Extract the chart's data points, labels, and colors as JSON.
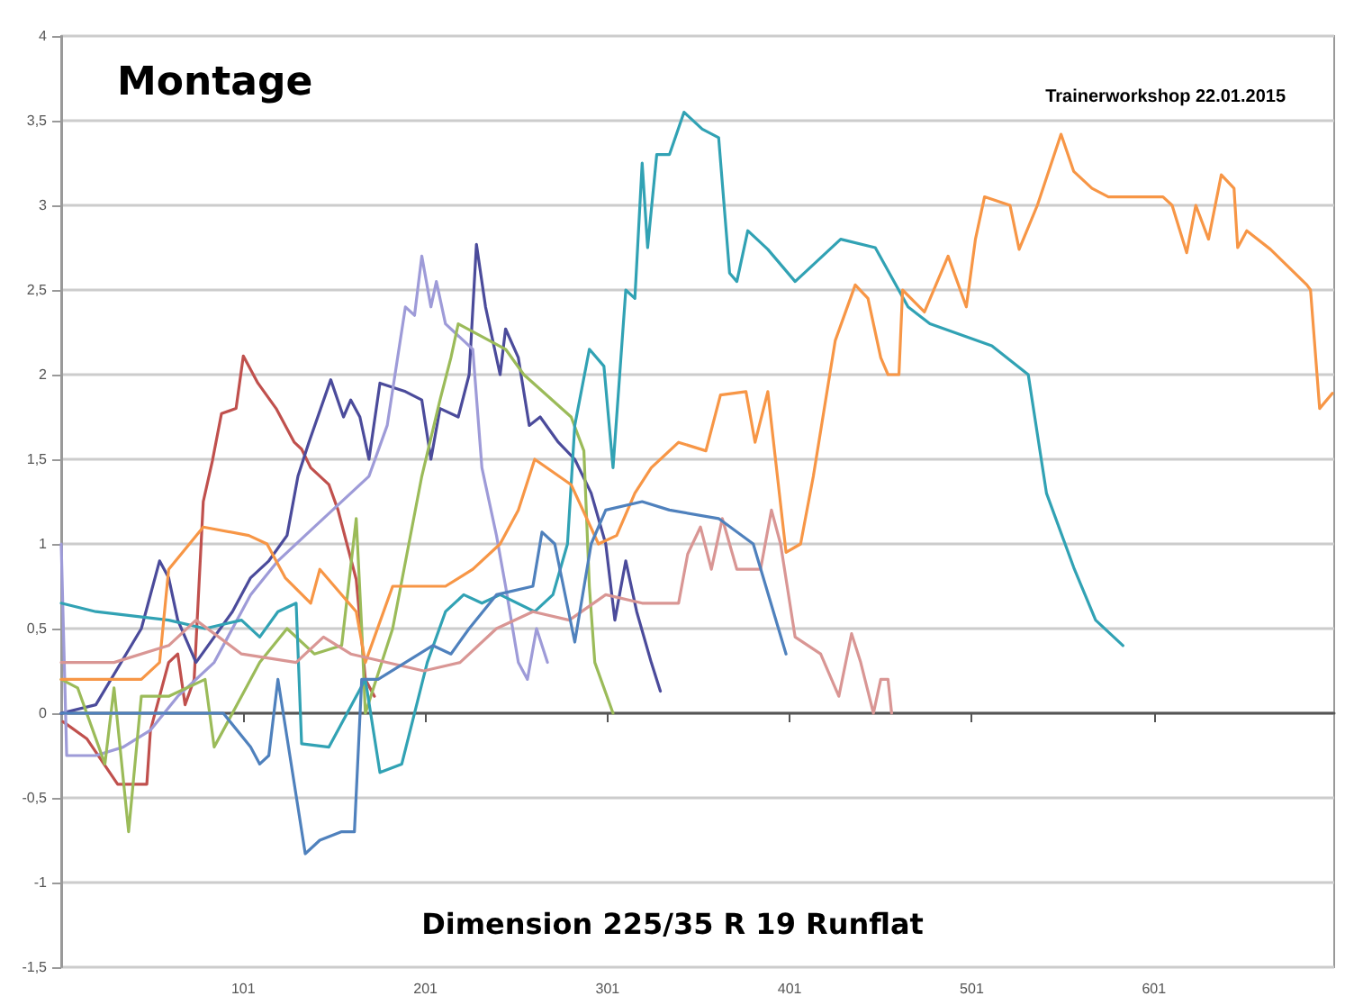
{
  "chart_data": {
    "type": "line",
    "title": "Montage",
    "subtitle": "Trainerworkshop 22.01.2015",
    "annotations": [
      "Dimension 225/35 R 19 Runflat"
    ],
    "xlim": [
      1,
      700
    ],
    "xticks": [
      101,
      201,
      301,
      401,
      501,
      601
    ],
    "ylim": [
      -1.5,
      4
    ],
    "yticks": [
      {
        "value": -1.5,
        "label": "-1,5"
      },
      -1,
      {
        "value": -0.5,
        "label": "-0,5"
      },
      0,
      {
        "value": 0.5,
        "label": "0,5"
      },
      1,
      {
        "value": 1.5,
        "label": "1,5"
      },
      2,
      {
        "value": 2.5,
        "label": "2,5"
      },
      3,
      {
        "value": 3.5,
        "label": "3,5"
      },
      4
    ],
    "grid": "y",
    "series": [
      {
        "color": "#c0504d",
        "x": [
          2,
          15,
          32,
          48,
          50,
          60,
          65,
          69,
          74,
          79,
          84,
          89,
          97,
          101,
          109,
          119,
          129,
          133,
          138,
          148,
          153,
          163,
          168,
          173
        ],
        "values": [
          -0.05,
          -0.15,
          -0.42,
          -0.42,
          -0.1,
          0.3,
          0.35,
          0.05,
          0.2,
          1.25,
          1.49,
          1.77,
          1.8,
          2.11,
          1.95,
          1.8,
          1.6,
          1.56,
          1.45,
          1.35,
          1.2,
          0.79,
          0.2,
          0.1
        ]
      },
      {
        "color": "#4b4b9b",
        "x": [
          1,
          20,
          45,
          55,
          60,
          65,
          75,
          95,
          105,
          115,
          125,
          131,
          137,
          149,
          156,
          160,
          165,
          170,
          176,
          190,
          199,
          204,
          209,
          219,
          225,
          229,
          234,
          242,
          245,
          252,
          258,
          264,
          274,
          283,
          292,
          300,
          305,
          311,
          317,
          325,
          330
        ],
        "values": [
          0,
          0.05,
          0.5,
          0.9,
          0.8,
          0.55,
          0.3,
          0.6,
          0.8,
          0.9,
          1.05,
          1.4,
          1.6,
          1.97,
          1.75,
          1.85,
          1.75,
          1.5,
          1.95,
          1.9,
          1.85,
          1.5,
          1.8,
          1.75,
          2,
          2.77,
          2.4,
          2,
          2.27,
          2.1,
          1.7,
          1.75,
          1.6,
          1.5,
          1.3,
          1,
          0.55,
          0.9,
          0.6,
          0.3,
          0.13
        ]
      },
      {
        "color": "#9e9bd8",
        "x": [
          1,
          4,
          20,
          35,
          50,
          65,
          85,
          95,
          105,
          120,
          140,
          160,
          170,
          180,
          190,
          195,
          199,
          204,
          207,
          212,
          217,
          222,
          227,
          232,
          240,
          245,
          252,
          257,
          262,
          268
        ],
        "values": [
          1,
          -0.25,
          -0.25,
          -0.2,
          -0.1,
          0.1,
          0.3,
          0.5,
          0.7,
          0.9,
          1.1,
          1.3,
          1.4,
          1.7,
          2.4,
          2.35,
          2.7,
          2.4,
          2.55,
          2.3,
          2.25,
          2.2,
          2.15,
          1.45,
          1.05,
          0.75,
          0.3,
          0.2,
          0.5,
          0.3
        ]
      },
      {
        "color": "#9bbb59",
        "x": [
          1,
          10,
          25,
          30,
          38,
          45,
          60,
          80,
          85,
          95,
          110,
          125,
          140,
          155,
          163,
          166,
          168,
          183,
          199,
          209,
          215,
          219,
          245,
          255,
          281,
          288,
          291,
          294,
          304
        ],
        "values": [
          0.2,
          0.15,
          -0.3,
          0.15,
          -0.7,
          0.1,
          0.1,
          0.2,
          -0.2,
          0,
          0.3,
          0.5,
          0.35,
          0.4,
          1.15,
          0.5,
          0,
          0.5,
          1.4,
          1.85,
          2.1,
          2.3,
          2.15,
          2,
          1.75,
          1.55,
          0.75,
          0.3,
          0
        ]
      },
      {
        "color": "#31a2b4",
        "x": [
          1,
          20,
          60,
          80,
          100,
          110,
          120,
          130,
          133,
          148,
          168,
          176,
          188,
          202,
          212,
          222,
          232,
          242,
          261,
          271,
          279,
          283,
          291,
          299,
          304,
          311,
          316,
          320,
          323,
          328,
          335,
          343,
          353,
          362,
          368,
          372,
          378,
          389,
          404,
          429,
          448,
          466,
          478,
          512,
          532,
          542,
          557,
          569,
          584
        ],
        "values": [
          0.65,
          0.6,
          0.55,
          0.5,
          0.55,
          0.45,
          0.6,
          0.65,
          -0.18,
          -0.2,
          0.2,
          -0.35,
          -0.3,
          0.3,
          0.6,
          0.7,
          0.65,
          0.7,
          0.6,
          0.7,
          1,
          1.7,
          2.15,
          2.05,
          1.45,
          2.5,
          2.45,
          3.25,
          2.75,
          3.3,
          3.3,
          3.55,
          3.45,
          3.4,
          2.6,
          2.55,
          2.85,
          2.74,
          2.55,
          2.8,
          2.75,
          2.4,
          2.3,
          2.17,
          2,
          1.3,
          0.86,
          0.55,
          0.4
        ]
      },
      {
        "color": "#f79646",
        "x": [
          1,
          45,
          55,
          60,
          79,
          104,
          114,
          124,
          138,
          143,
          163,
          168,
          183,
          212,
          227,
          242,
          252,
          261,
          281,
          296,
          306,
          316,
          325,
          340,
          355,
          363,
          377,
          382,
          389,
          399,
          407,
          414,
          426,
          437,
          444,
          451,
          455,
          461,
          463,
          475,
          488,
          498,
          503,
          508,
          522,
          527,
          537,
          550,
          557,
          567,
          576,
          606,
          611,
          619,
          624,
          631,
          638,
          645,
          647,
          652,
          665,
          685,
          687,
          692,
          699
        ],
        "values": [
          0.2,
          0.2,
          0.3,
          0.85,
          1.1,
          1.05,
          1,
          0.8,
          0.65,
          0.85,
          0.6,
          0.3,
          0.75,
          0.75,
          0.85,
          1,
          1.2,
          1.5,
          1.35,
          1,
          1.05,
          1.3,
          1.45,
          1.6,
          1.55,
          1.88,
          1.9,
          1.6,
          1.9,
          0.95,
          1,
          1.4,
          2.2,
          2.53,
          2.45,
          2.1,
          2,
          2,
          2.5,
          2.37,
          2.7,
          2.4,
          2.8,
          3.05,
          3,
          2.74,
          3,
          3.42,
          3.2,
          3.1,
          3.05,
          3.05,
          3,
          2.72,
          3,
          2.8,
          3.18,
          3.1,
          2.75,
          2.85,
          2.74,
          2.53,
          2.5,
          1.8,
          1.89
        ]
      },
      {
        "color": "#d99694",
        "x": [
          1,
          30,
          60,
          75,
          100,
          130,
          145,
          160,
          200,
          220,
          240,
          260,
          280,
          300,
          320,
          340,
          345,
          352,
          358,
          364,
          372,
          385,
          391,
          396,
          404,
          418,
          428,
          435,
          440,
          447,
          451,
          455,
          457
        ],
        "values": [
          0.3,
          0.3,
          0.4,
          0.55,
          0.35,
          0.3,
          0.45,
          0.35,
          0.25,
          0.3,
          0.5,
          0.6,
          0.55,
          0.7,
          0.65,
          0.65,
          0.94,
          1.1,
          0.85,
          1.15,
          0.85,
          0.85,
          1.2,
          1,
          0.45,
          0.35,
          0.1,
          0.47,
          0.3,
          0,
          0.2,
          0.2,
          0
        ]
      },
      {
        "color": "#4f81bd",
        "x": [
          1,
          90,
          105,
          110,
          115,
          120,
          135,
          143,
          155,
          162,
          166,
          175,
          190,
          205,
          215,
          225,
          240,
          260,
          265,
          272,
          283,
          292,
          300,
          320,
          335,
          362,
          381,
          399
        ],
        "values": [
          0,
          0,
          -0.2,
          -0.3,
          -0.25,
          0.2,
          -0.83,
          -0.75,
          -0.7,
          -0.7,
          0.2,
          0.2,
          0.3,
          0.4,
          0.35,
          0.5,
          0.7,
          0.75,
          1.07,
          1,
          0.42,
          1,
          1.2,
          1.25,
          1.2,
          1.15,
          1,
          0.35
        ]
      }
    ]
  }
}
